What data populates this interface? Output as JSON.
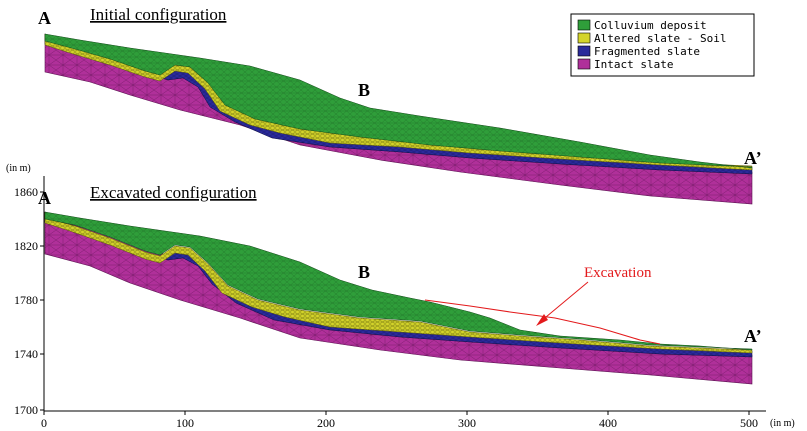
{
  "top_panel": {
    "title": "Initial configuration",
    "point_a": "A",
    "point_b": "B",
    "point_a_prime": "A’"
  },
  "bottom_panel": {
    "title": "Excavated configuration",
    "point_a": "A",
    "point_b": "B",
    "point_a_prime": "A’",
    "excavation_label": "Excavation"
  },
  "legend": [
    {
      "label": "Colluvium deposit",
      "color": "#2f9e3a"
    },
    {
      "label": "Altered slate - Soil",
      "color": "#d4d42a"
    },
    {
      "label": "Fragmented slate",
      "color": "#2a2a9a"
    },
    {
      "label": "Intact slate",
      "color": "#b0309a"
    }
  ],
  "y_axis": {
    "unit": "(in m)",
    "ticks": [
      "1860",
      "1820",
      "1780",
      "1740",
      "1700"
    ]
  },
  "x_axis": {
    "unit": "(in m)",
    "ticks": [
      "0",
      "100",
      "200",
      "300",
      "400",
      "500"
    ]
  }
}
